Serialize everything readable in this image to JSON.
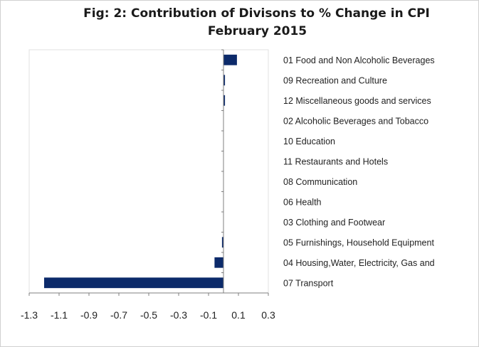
{
  "title_line1": "Fig: 2: Contribution of Divisons to % Change in CPI",
  "title_line2": "February 2015",
  "chart_data": {
    "type": "bar",
    "orientation": "horizontal",
    "title": "Fig: 2: Contribution of Divisons to % Change in CPI February 2015",
    "categories": [
      "01 Food and Non Alcoholic Beverages",
      "09 Recreation and Culture",
      "12 Miscellaneous goods and services",
      "02 Alcoholic Beverages and Tobacco",
      "10 Education",
      "11 Restaurants and Hotels",
      "08 Communication",
      "06 Health",
      "03 Clothing and Footwear",
      "05 Furnishings, Household Equipment",
      "04 Housing,Water, Electricity, Gas and",
      "07 Transport"
    ],
    "values": [
      0.09,
      0.01,
      0.01,
      0.0,
      0.0,
      0.0,
      0.0,
      0.0,
      0.0,
      -0.01,
      -0.06,
      -1.2
    ],
    "xlim": [
      -1.3,
      0.3
    ],
    "xticks": [
      -1.3,
      -1.1,
      -0.9,
      -0.7,
      -0.5,
      -0.3,
      -0.1,
      0.1,
      0.3
    ],
    "xtick_labels": [
      "-1.3",
      "-1.1",
      "-0.9",
      "-0.7",
      "-0.5",
      "-0.3",
      "-0.1",
      "0.1",
      "0.3"
    ],
    "bar_color": "#0c2a6a",
    "legend": "none",
    "grid": false
  }
}
